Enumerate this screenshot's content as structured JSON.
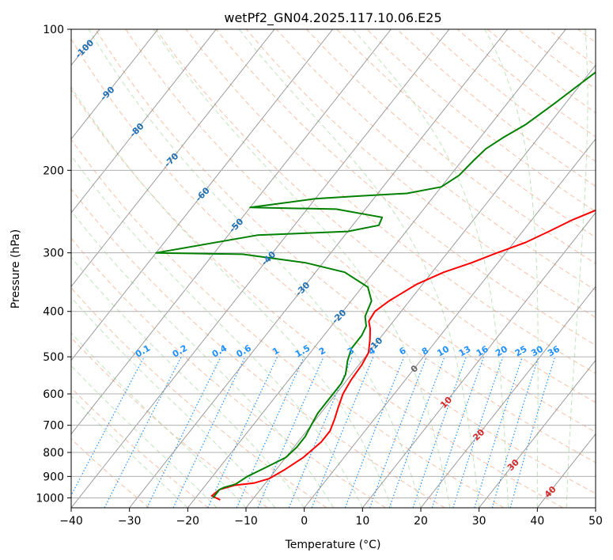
{
  "chart_data": {
    "type": "line",
    "title": "wetPf2_GN04.2025.117.10.06.E25",
    "xlabel": "Temperature (°C)",
    "ylabel": "Pressure (hPa)",
    "xlim": [
      -40,
      50
    ],
    "ylim": [
      1050,
      100
    ],
    "y_scale": "log",
    "x_ticks": [
      -40,
      -30,
      -20,
      -10,
      0,
      10,
      20,
      30,
      40,
      50
    ],
    "y_ticks": [
      100,
      200,
      300,
      400,
      500,
      600,
      700,
      800,
      900,
      1000
    ],
    "grid": true,
    "colors": {
      "temperature": "#ff0000",
      "dewpoint": "#008000",
      "dry_adiabat": "#f4a582",
      "moist_adiabat": "#a6d9a0",
      "mixing_ratio": "#1e90ff",
      "isotherm": "#808080",
      "neg_label": "#1f6fb4",
      "pos_label": "#d62728"
    },
    "series": [
      {
        "name": "Temperature",
        "points": [
          [
            -15.5,
            1010
          ],
          [
            -17.5,
            990
          ],
          [
            -17.0,
            960
          ],
          [
            -15.0,
            940
          ],
          [
            -12.0,
            930
          ],
          [
            -10.0,
            910
          ],
          [
            -8.5,
            870
          ],
          [
            -7.0,
            820
          ],
          [
            -6.0,
            760
          ],
          [
            -6.0,
            720
          ],
          [
            -6.8,
            680
          ],
          [
            -7.8,
            640
          ],
          [
            -8.8,
            600
          ],
          [
            -9.3,
            560
          ],
          [
            -9.5,
            520
          ],
          [
            -10.0,
            490
          ],
          [
            -11.5,
            460
          ],
          [
            -13.0,
            435
          ],
          [
            -14.2,
            420
          ],
          [
            -14.5,
            400
          ],
          [
            -13.5,
            380
          ],
          [
            -11.0,
            350
          ],
          [
            -8.0,
            330
          ],
          [
            -4.5,
            315
          ],
          [
            -1.5,
            300
          ],
          [
            2.0,
            285
          ],
          [
            4.5,
            270
          ],
          [
            7.0,
            255
          ],
          [
            10.0,
            242
          ],
          [
            12.5,
            230
          ],
          [
            14.0,
            220
          ],
          [
            15.0,
            210
          ],
          [
            16.5,
            200
          ],
          [
            18.5,
            190
          ],
          [
            21.0,
            175
          ],
          [
            24.0,
            160
          ],
          [
            27.0,
            145
          ],
          [
            30.0,
            130
          ],
          [
            32.5,
            117
          ],
          [
            34.5,
            110
          ],
          [
            36.5,
            103
          ],
          [
            37.5,
            100
          ]
        ]
      },
      {
        "name": "Dewpoint",
        "points": [
          [
            -17.0,
            1000
          ],
          [
            -17.0,
            960
          ],
          [
            -16.5,
            950
          ],
          [
            -15.0,
            935
          ],
          [
            -14.0,
            900
          ],
          [
            -12.0,
            860
          ],
          [
            -10.0,
            820
          ],
          [
            -9.5,
            780
          ],
          [
            -9.5,
            740
          ],
          [
            -10.0,
            700
          ],
          [
            -10.5,
            660
          ],
          [
            -10.5,
            630
          ],
          [
            -10.5,
            600
          ],
          [
            -10.5,
            570
          ],
          [
            -11.0,
            545
          ],
          [
            -12.5,
            510
          ],
          [
            -13.5,
            480
          ],
          [
            -13.5,
            450
          ],
          [
            -14.0,
            430
          ],
          [
            -15.5,
            410
          ],
          [
            -16.5,
            380
          ],
          [
            -19.0,
            355
          ],
          [
            -25.0,
            330
          ],
          [
            -33.0,
            315
          ],
          [
            -45.0,
            302
          ],
          [
            -60.0,
            300
          ],
          [
            -45.0,
            275
          ],
          [
            -30.0,
            270
          ],
          [
            -25.5,
            262
          ],
          [
            -26.0,
            252
          ],
          [
            -35.0,
            242
          ],
          [
            -50.0,
            240
          ],
          [
            -40.0,
            230
          ],
          [
            -33.0,
            227
          ],
          [
            -25.0,
            224
          ],
          [
            -20.0,
            217
          ],
          [
            -18.5,
            205
          ],
          [
            -18.0,
            190
          ],
          [
            -17.5,
            180
          ],
          [
            -16.0,
            170
          ],
          [
            -14.0,
            160
          ],
          [
            -12.0,
            145
          ],
          [
            -10.0,
            130
          ],
          [
            -8.5,
            120
          ],
          [
            -6.5,
            110
          ],
          [
            -5.0,
            103
          ],
          [
            -4.5,
            100
          ]
        ]
      }
    ],
    "isotherm_labels": [
      "-100",
      "-90",
      "-80",
      "-70",
      "-60",
      "-50",
      "-40",
      "-30",
      "-20",
      "-10",
      "0",
      "10",
      "20",
      "30",
      "40"
    ],
    "mixing_ratio_labels": [
      "0.1",
      "0.2",
      "0.4",
      "0.6",
      "1",
      "1.5",
      "2",
      "3",
      "4",
      "6",
      "8",
      "10",
      "13",
      "16",
      "20",
      "25",
      "30",
      "36"
    ]
  }
}
